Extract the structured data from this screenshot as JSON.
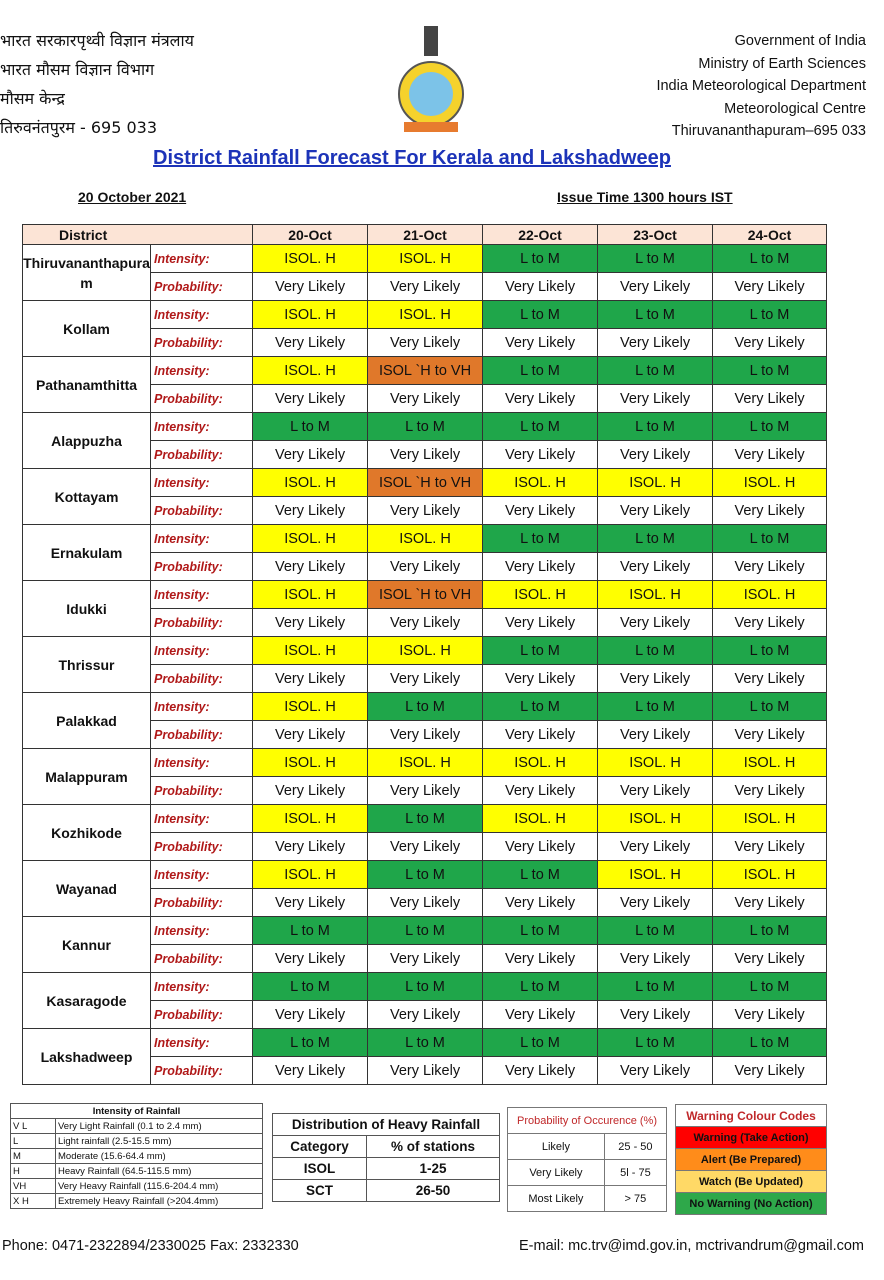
{
  "header": {
    "left_lines": [
      "भारत सरकारपृथ्वी विज्ञान मंत्रलाय",
      "भारत मौसम विज्ञान विभाग",
      "मौसम केन्द्र",
      "तिरुवनंतपुरम - 695 033"
    ],
    "right_lines": [
      "Government of India",
      "Ministry of Earth Sciences",
      "India Meteorological Department",
      "Meteorological Centre",
      "Thiruvananthapuram–695 033"
    ],
    "title": "District Rainfall Forecast For Kerala and Lakshadweep",
    "date": "20 October 2021",
    "issue_time": "Issue Time 1300 hours IST"
  },
  "table": {
    "district_header": "District",
    "dates": [
      "20-Oct",
      "21-Oct",
      "22-Oct",
      "23-Oct",
      "24-Oct"
    ],
    "intensity_label": "Intensity:",
    "probability_label": "Probability:",
    "colors": {
      "ISOL. H": "#ffff00",
      "ISOL `H to VH": "#e0782a",
      "L to M": "#1fa64a"
    },
    "districts": [
      {
        "name": "Thiruvananthapuram",
        "intensity": [
          "ISOL. H",
          "ISOL. H",
          "L to M",
          "L to M",
          "L to M"
        ],
        "probability": [
          "Very Likely",
          "Very Likely",
          "Very Likely",
          "Very Likely",
          "Very Likely"
        ]
      },
      {
        "name": "Kollam",
        "intensity": [
          "ISOL. H",
          "ISOL. H",
          "L to M",
          "L to M",
          "L to M"
        ],
        "probability": [
          "Very Likely",
          "Very Likely",
          "Very Likely",
          "Very Likely",
          "Very Likely"
        ]
      },
      {
        "name": "Pathanamthitta",
        "intensity": [
          "ISOL. H",
          "ISOL `H to VH",
          "L to M",
          "L to M",
          "L to M"
        ],
        "probability": [
          "Very Likely",
          "Very Likely",
          "Very Likely",
          "Very Likely",
          "Very Likely"
        ]
      },
      {
        "name": "Alappuzha",
        "intensity": [
          "L to M",
          "L to M",
          "L to M",
          "L to M",
          "L to M"
        ],
        "probability": [
          "Very Likely",
          "Very Likely",
          "Very Likely",
          "Very Likely",
          "Very Likely"
        ]
      },
      {
        "name": "Kottayam",
        "intensity": [
          "ISOL. H",
          "ISOL `H to VH",
          "ISOL. H",
          "ISOL. H",
          "ISOL. H"
        ],
        "probability": [
          "Very Likely",
          "Very Likely",
          "Very Likely",
          "Very Likely",
          "Very Likely"
        ]
      },
      {
        "name": "Ernakulam",
        "intensity": [
          "ISOL. H",
          "ISOL. H",
          "L to M",
          "L to M",
          "L to M"
        ],
        "probability": [
          "Very Likely",
          "Very Likely",
          "Very Likely",
          "Very Likely",
          "Very Likely"
        ]
      },
      {
        "name": "Idukki",
        "intensity": [
          "ISOL. H",
          "ISOL `H to VH",
          "ISOL. H",
          "ISOL. H",
          "ISOL. H"
        ],
        "probability": [
          "Very Likely",
          "Very Likely",
          "Very Likely",
          "Very Likely",
          "Very Likely"
        ]
      },
      {
        "name": "Thrissur",
        "intensity": [
          "ISOL. H",
          "ISOL. H",
          "L to M",
          "L to M",
          "L to M"
        ],
        "probability": [
          "Very Likely",
          "Very Likely",
          "Very Likely",
          "Very Likely",
          "Very Likely"
        ]
      },
      {
        "name": "Palakkad",
        "intensity": [
          "ISOL. H",
          "L to M",
          "L to M",
          "L to M",
          "L to M"
        ],
        "probability": [
          "Very Likely",
          "Very Likely",
          "Very Likely",
          "Very Likely",
          "Very Likely"
        ]
      },
      {
        "name": "Malappuram",
        "intensity": [
          "ISOL. H",
          "ISOL. H",
          "ISOL. H",
          "ISOL. H",
          "ISOL. H"
        ],
        "probability": [
          "Very Likely",
          "Very Likely",
          "Very Likely",
          "Very Likely",
          "Very Likely"
        ]
      },
      {
        "name": "Kozhikode",
        "intensity": [
          "ISOL. H",
          "L to M",
          "ISOL. H",
          "ISOL. H",
          "ISOL. H"
        ],
        "probability": [
          "Very Likely",
          "Very Likely",
          "Very Likely",
          "Very Likely",
          "Very Likely"
        ]
      },
      {
        "name": "Wayanad",
        "intensity": [
          "ISOL. H",
          "L to M",
          "L to M",
          "ISOL. H",
          "ISOL. H"
        ],
        "probability": [
          "Very Likely",
          "Very Likely",
          "Very Likely",
          "Very Likely",
          "Very Likely"
        ]
      },
      {
        "name": "Kannur",
        "intensity": [
          "L to M",
          "L to M",
          "L to M",
          "L to M",
          "L to M"
        ],
        "probability": [
          "Very Likely",
          "Very Likely",
          "Very Likely",
          "Very Likely",
          "Very Likely"
        ]
      },
      {
        "name": "Kasaragode",
        "intensity": [
          "L to M",
          "L to M",
          "L to M",
          "L to M",
          "L to M"
        ],
        "probability": [
          "Very Likely",
          "Very Likely",
          "Very Likely",
          "Very Likely",
          "Very Likely"
        ]
      },
      {
        "name": "Lakshadweep",
        "intensity": [
          "L to M",
          "L to M",
          "L to M",
          "L to M",
          "L to M"
        ],
        "probability": [
          "Very Likely",
          "Very Likely",
          "Very Likely",
          "Very Likely",
          "Very Likely"
        ]
      }
    ]
  },
  "intensity_legend": {
    "title": "Intensity of Rainfall",
    "rows": [
      [
        "V L",
        "Very Light Rainfall (0.1 to 2.4 mm)"
      ],
      [
        "L",
        "Light rainfall (2.5-15.5 mm)"
      ],
      [
        "M",
        "Moderate (15.6-64.4 mm)"
      ],
      [
        "H",
        "Heavy Rainfall (64.5-115.5 mm)"
      ],
      [
        "VH",
        "Very Heavy Rainfall (115.6-204.4 mm)"
      ],
      [
        "X H",
        "Extremely Heavy Rainfall (>204.4mm)"
      ]
    ]
  },
  "distribution": {
    "title": "Distribution of Heavy Rainfall",
    "headers": [
      "Category",
      "% of stations"
    ],
    "rows": [
      [
        "ISOL",
        "1-25"
      ],
      [
        "SCT",
        "26-50"
      ]
    ]
  },
  "probability_legend": {
    "title": "Probability of Occurence (%)",
    "rows": [
      [
        "Likely",
        "25 - 50"
      ],
      [
        "Very Likely",
        "5l - 75"
      ],
      [
        "Most Likely",
        "> 75"
      ]
    ]
  },
  "warning": {
    "title": "Warning Colour Codes",
    "items": [
      {
        "label": "Warning (Take Action)",
        "color": "#ff0000"
      },
      {
        "label": "Alert (Be Prepared)",
        "color": "#ff8c1a"
      },
      {
        "label": "Watch (Be Updated)",
        "color": "#ffd966"
      },
      {
        "label": "No Warning (No Action)",
        "color": "#2ea84a"
      }
    ]
  },
  "footer": {
    "phone": "Phone: 0471-2322894/2330025 Fax: 2332330",
    "email": "E-mail: mc.trv@imd.gov.in, mctrivandrum@gmail.com"
  }
}
